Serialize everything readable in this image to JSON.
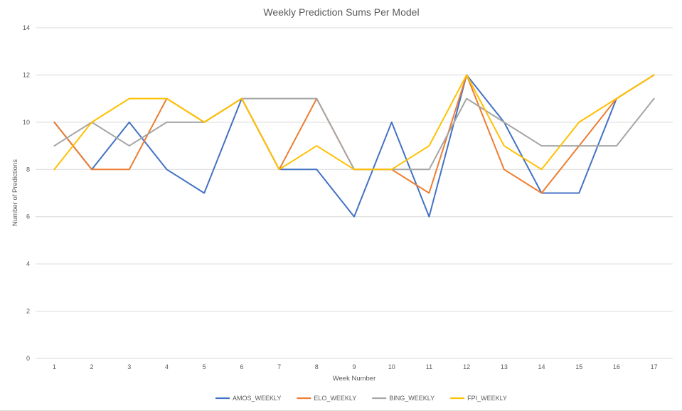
{
  "chart_data": {
    "type": "line",
    "title": "Weekly Prediction Sums Per Model",
    "xlabel": "Week Number",
    "ylabel": "Number of Predictions",
    "categories": [
      "1",
      "2",
      "3",
      "4",
      "5",
      "6",
      "7",
      "8",
      "9",
      "10",
      "11",
      "12",
      "13",
      "14",
      "15",
      "16",
      "17"
    ],
    "ylim": [
      0,
      14
    ],
    "yticks": [
      "0",
      "2",
      "4",
      "6",
      "8",
      "10",
      "12",
      "14"
    ],
    "grid": true,
    "legend_position": "bottom",
    "series": [
      {
        "name": "AMOS_WEEKLY",
        "color": "#4472C4",
        "values": [
          10,
          8,
          10,
          8,
          7,
          11,
          8,
          8,
          6,
          10,
          6,
          12,
          10,
          7,
          7,
          11,
          12
        ]
      },
      {
        "name": "ELO_WEEKLY",
        "color": "#ED7D31",
        "values": [
          10,
          8,
          8,
          11,
          10,
          11,
          8,
          11,
          8,
          8,
          7,
          12,
          8,
          7,
          9,
          11,
          12
        ]
      },
      {
        "name": "BING_WEEKLY",
        "color": "#A5A5A5",
        "values": [
          9,
          10,
          9,
          10,
          10,
          11,
          11,
          11,
          8,
          8,
          8,
          11,
          10,
          9,
          9,
          9,
          11
        ]
      },
      {
        "name": "FPI_WEEKLY",
        "color": "#FFC000",
        "values": [
          8,
          10,
          11,
          11,
          10,
          11,
          8,
          9,
          8,
          8,
          9,
          12,
          9,
          8,
          10,
          11,
          12
        ]
      }
    ]
  }
}
